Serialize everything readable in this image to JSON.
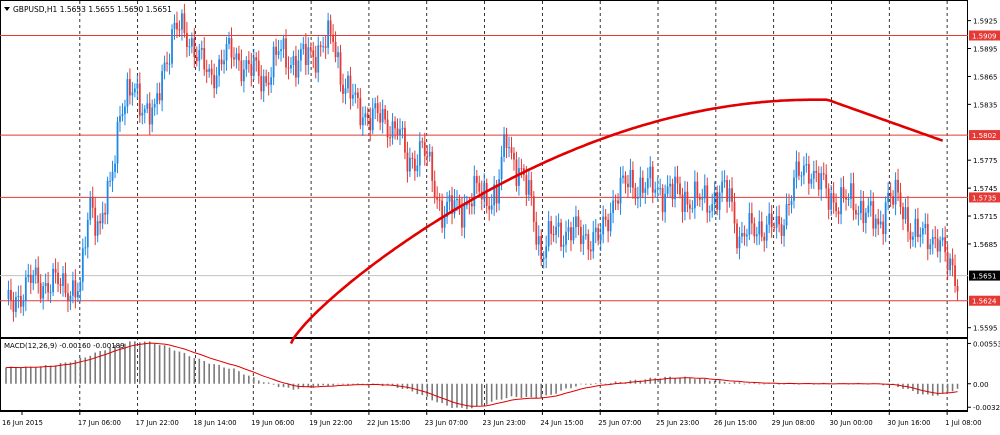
{
  "chart_data": [
    {
      "type": "candlestick",
      "title": "GBPUSD,H1",
      "ohlc": {
        "open": "1.5653",
        "high": "1.5655",
        "low": "1.5650",
        "close": "1.5651"
      },
      "ylim": [
        1.5585,
        1.5945
      ],
      "y_ticks": [
        "1.5925",
        "1.5895",
        "1.5865",
        "1.5835",
        "1.5775",
        "1.5745",
        "1.5715",
        "1.5685",
        "1.5595"
      ],
      "x_labels": [
        "16 Jun 2015",
        "17 Jun 06:00",
        "17 Jun 22:00",
        "18 Jun 14:00",
        "19 Jun 06:00",
        "19 Jun 22:00",
        "22 Jun 15:00",
        "23 Jun 07:00",
        "23 Jun 23:00",
        "24 Jun 15:00",
        "25 Jun 07:00",
        "25 Jun 23:00",
        "26 Jun 15:00",
        "29 Jun 08:00",
        "30 Jun 00:00",
        "30 Jun 16:00",
        "1 Jul 08:00"
      ],
      "levels": [
        {
          "label": "1.5909",
          "value": 1.5909
        },
        {
          "label": "1.5802",
          "value": 1.5802
        },
        {
          "label": "1.5735",
          "value": 1.5735
        },
        {
          "label": "1.5624",
          "value": 1.5624
        }
      ],
      "current_price": {
        "label": "1.5651",
        "value": 1.5651
      },
      "up_color": "#1e88e5",
      "down_color": "#e53935",
      "level_color": "#e53935",
      "ma_color": "#e00000",
      "grid": "vertical-dashed"
    },
    {
      "type": "histogram+line",
      "title": "MACD(12,26,9) -0.00160 -0.00189",
      "ylim": [
        -0.0036,
        0.006
      ],
      "y_ticks": [
        "0.00553",
        "0.00",
        "-0.00322"
      ],
      "histogram_color": "#7a7a7a",
      "signal_color": "#e00000"
    }
  ]
}
